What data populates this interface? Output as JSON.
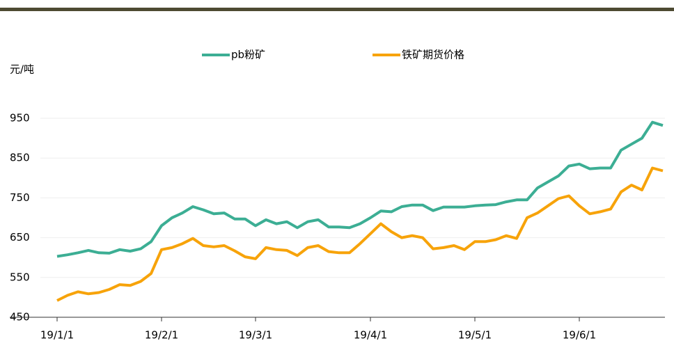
{
  "chart_data": {
    "type": "line",
    "y_label": "元/吨",
    "categories": [
      "19/1/1",
      null,
      null,
      null,
      null,
      null,
      null,
      null,
      null,
      null,
      "19/2/1",
      null,
      null,
      null,
      null,
      null,
      null,
      null,
      null,
      "19/3/1",
      null,
      null,
      null,
      null,
      null,
      null,
      null,
      null,
      null,
      null,
      "19/4/1",
      null,
      null,
      null,
      null,
      null,
      null,
      null,
      null,
      null,
      "19/5/1",
      null,
      null,
      null,
      null,
      null,
      null,
      null,
      null,
      null,
      "19/6/1",
      null,
      null,
      null,
      null,
      null,
      null,
      null,
      null
    ],
    "series": [
      {
        "name": "pb粉矿",
        "color": "#3cae94",
        "values": [
          603,
          607,
          612,
          618,
          612,
          611,
          620,
          616,
          622,
          640,
          680,
          700,
          712,
          728,
          720,
          710,
          712,
          697,
          697,
          680,
          695,
          685,
          690,
          675,
          690,
          695,
          677,
          677,
          675,
          685,
          700,
          717,
          715,
          728,
          732,
          732,
          718,
          727,
          727,
          727,
          730,
          732,
          733,
          740,
          745,
          745,
          775,
          790,
          805,
          830,
          835,
          823,
          825,
          825,
          870,
          885,
          900,
          940,
          932
        ]
      },
      {
        "name": "铁矿期货价格",
        "color": "#f7a30a",
        "values": [
          492,
          505,
          514,
          509,
          512,
          520,
          532,
          530,
          540,
          560,
          620,
          625,
          635,
          648,
          630,
          627,
          630,
          617,
          602,
          597,
          625,
          620,
          618,
          605,
          625,
          630,
          615,
          612,
          612,
          635,
          660,
          685,
          665,
          650,
          655,
          650,
          622,
          625,
          630,
          620,
          640,
          640,
          645,
          655,
          648,
          700,
          712,
          730,
          748,
          755,
          730,
          710,
          715,
          722,
          765,
          782,
          770,
          825,
          818
        ]
      }
    ],
    "ylim": [
      450,
      950
    ],
    "yticks": [
      450,
      550,
      650,
      750,
      850,
      950
    ],
    "grid": true
  }
}
